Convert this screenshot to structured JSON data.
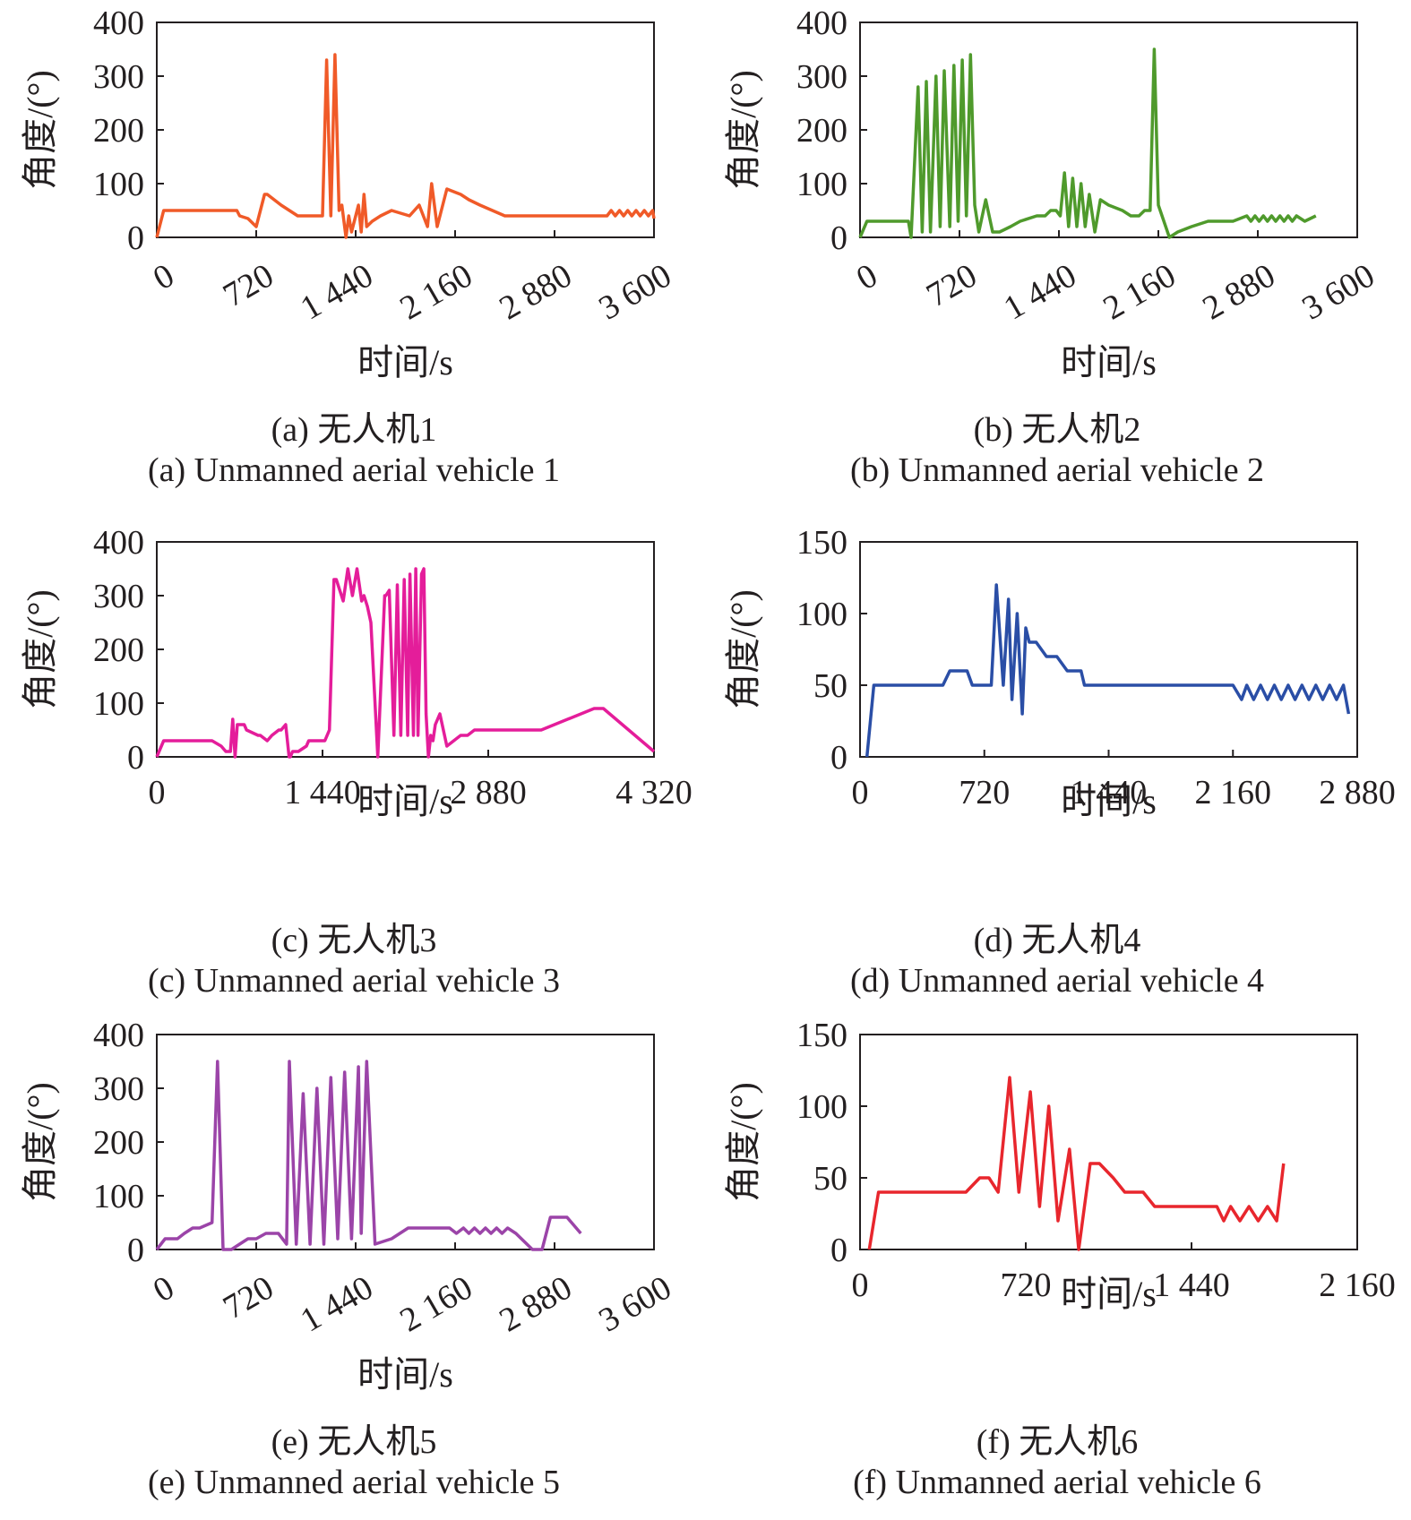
{
  "chart_data": [
    {
      "type": "line",
      "caption_cn": "(a) 无人机1",
      "caption_en": "(a) Unmanned aerial vehicle 1",
      "xlabel": "时间/s",
      "ylabel": "角度/(°)",
      "xlim": [
        0,
        3600
      ],
      "ylim": [
        0,
        400
      ],
      "xticks": [
        0,
        720,
        1440,
        2160,
        2880,
        3600
      ],
      "xtick_labels": [
        "0",
        "720",
        "1 440",
        "2 160",
        "2 880",
        "3 600"
      ],
      "yticks": [
        0,
        100,
        200,
        300,
        400
      ],
      "ytick_labels": [
        "0",
        "100",
        "200",
        "300",
        "400"
      ],
      "rotated_xticks": true,
      "grid": false,
      "color": "#f05a28",
      "series": [
        {
          "x": [
            0,
            50,
            500,
            520,
            580,
            600,
            660,
            700,
            720,
            780,
            800,
            900,
            1020,
            1200,
            1230,
            1260,
            1290,
            1320,
            1340,
            1370,
            1390,
            1410,
            1430,
            1460,
            1480,
            1500,
            1520,
            1560,
            1620,
            1700,
            1830,
            1900,
            1960,
            1990,
            2030,
            2100,
            2200,
            2260,
            2340,
            2520,
            2900,
            3260,
            3290,
            3320,
            3350,
            3380,
            3410,
            3440,
            3470,
            3500,
            3530,
            3560,
            3590,
            3600
          ],
          "y": [
            0,
            50,
            50,
            50,
            50,
            40,
            35,
            25,
            20,
            80,
            80,
            60,
            40,
            40,
            330,
            40,
            340,
            50,
            60,
            0,
            40,
            10,
            30,
            60,
            10,
            80,
            20,
            30,
            40,
            50,
            40,
            60,
            20,
            100,
            20,
            90,
            80,
            70,
            60,
            40,
            40,
            40,
            50,
            40,
            50,
            40,
            50,
            40,
            50,
            40,
            50,
            40,
            50,
            35
          ]
        }
      ]
    },
    {
      "type": "line",
      "caption_cn": "(b) 无人机2",
      "caption_en": "(b) Unmanned aerial vehicle 2",
      "xlabel": "时间/s",
      "ylabel": "角度/(°)",
      "xlim": [
        0,
        3600
      ],
      "ylim": [
        0,
        400
      ],
      "xticks": [
        0,
        720,
        1440,
        2160,
        2880,
        3600
      ],
      "xtick_labels": [
        "0",
        "720",
        "1 440",
        "2 160",
        "2 880",
        "3 600"
      ],
      "yticks": [
        0,
        100,
        200,
        300,
        400
      ],
      "ytick_labels": [
        "0",
        "100",
        "200",
        "300",
        "400"
      ],
      "rotated_xticks": true,
      "grid": false,
      "color": "#4f9a2c",
      "series": [
        {
          "x": [
            0,
            50,
            300,
            350,
            370,
            420,
            450,
            480,
            510,
            550,
            580,
            610,
            650,
            680,
            710,
            740,
            770,
            800,
            830,
            860,
            910,
            960,
            1010,
            1090,
            1160,
            1280,
            1310,
            1340,
            1380,
            1420,
            1450,
            1480,
            1510,
            1540,
            1570,
            1600,
            1630,
            1660,
            1700,
            1740,
            1800,
            1900,
            1960,
            2020,
            2060,
            2100,
            2130,
            2160,
            2240,
            2300,
            2400,
            2520,
            2700,
            2800,
            2830,
            2860,
            2890,
            2920,
            2950,
            2980,
            3010,
            3040,
            3070,
            3100,
            3130,
            3160,
            3220,
            3300
          ],
          "y": [
            0,
            30,
            30,
            30,
            0,
            280,
            10,
            290,
            10,
            300,
            20,
            310,
            20,
            320,
            30,
            330,
            40,
            340,
            60,
            10,
            70,
            10,
            10,
            20,
            30,
            40,
            40,
            40,
            50,
            50,
            40,
            120,
            20,
            110,
            20,
            100,
            20,
            80,
            10,
            70,
            60,
            50,
            40,
            40,
            50,
            50,
            350,
            60,
            0,
            10,
            20,
            30,
            30,
            40,
            30,
            40,
            30,
            40,
            30,
            40,
            30,
            40,
            30,
            40,
            30,
            40,
            30,
            40
          ]
        }
      ]
    },
    {
      "type": "line",
      "caption_cn": "(c) 无人机3",
      "caption_en": "(c) Unmanned aerial vehicle 3",
      "xlabel": "时间/s",
      "ylabel": "角度/(°)",
      "xlim": [
        0,
        4320
      ],
      "ylim": [
        0,
        400
      ],
      "xticks": [
        0,
        1440,
        2880,
        4320
      ],
      "xtick_labels": [
        "0",
        "1 440",
        "2 880",
        "4 320"
      ],
      "yticks": [
        0,
        100,
        200,
        300,
        400
      ],
      "ytick_labels": [
        "0",
        "100",
        "200",
        "300",
        "400"
      ],
      "rotated_xticks": false,
      "grid": false,
      "color": "#e41d9a",
      "series": [
        {
          "x": [
            0,
            60,
            450,
            480,
            560,
            600,
            640,
            660,
            680,
            700,
            760,
            780,
            880,
            900,
            960,
            1000,
            1060,
            1080,
            1120,
            1150,
            1160,
            1180,
            1230,
            1300,
            1320,
            1400,
            1460,
            1500,
            1540,
            1560,
            1620,
            1660,
            1700,
            1740,
            1780,
            1800,
            1830,
            1860,
            1920,
            1980,
            1990,
            2020,
            2060,
            2090,
            2120,
            2150,
            2180,
            2200,
            2230,
            2250,
            2270,
            2300,
            2320,
            2340,
            2360,
            2380,
            2400,
            2420,
            2460,
            2520,
            2580,
            2640,
            2700,
            2760,
            2900,
            3300,
            3340,
            3800,
            3880,
            4320
          ],
          "y": [
            0,
            30,
            30,
            30,
            20,
            10,
            10,
            70,
            0,
            60,
            60,
            50,
            40,
            40,
            30,
            40,
            50,
            50,
            60,
            0,
            0,
            10,
            10,
            20,
            30,
            30,
            30,
            50,
            330,
            330,
            290,
            350,
            300,
            350,
            290,
            300,
            280,
            250,
            0,
            300,
            300,
            310,
            40,
            320,
            40,
            330,
            40,
            340,
            40,
            350,
            40,
            340,
            350,
            80,
            0,
            40,
            30,
            60,
            80,
            20,
            30,
            40,
            40,
            50,
            50,
            50,
            50,
            90,
            90,
            10
          ]
        }
      ]
    },
    {
      "type": "line",
      "caption_cn": "(d) 无人机4",
      "caption_en": "(d) Unmanned aerial vehicle 4",
      "xlabel": "时间/s",
      "ylabel": "角度/(°)",
      "xlim": [
        0,
        2880
      ],
      "ylim": [
        0,
        150
      ],
      "xticks": [
        0,
        720,
        1440,
        2160,
        2880
      ],
      "xtick_labels": [
        "0",
        "720",
        "1 440",
        "2 160",
        "2 880"
      ],
      "yticks": [
        0,
        50,
        100,
        150
      ],
      "ytick_labels": [
        "0",
        "50",
        "100",
        "150"
      ],
      "rotated_xticks": false,
      "grid": false,
      "color": "#2a4ea6",
      "series": [
        {
          "x": [
            40,
            80,
            300,
            480,
            520,
            620,
            650,
            760,
            790,
            830,
            860,
            880,
            910,
            940,
            960,
            980,
            1020,
            1080,
            1140,
            1200,
            1280,
            1300,
            1360,
            1400,
            1440,
            1700,
            2160,
            2210,
            2240,
            2280,
            2320,
            2360,
            2400,
            2440,
            2480,
            2520,
            2560,
            2600,
            2640,
            2680,
            2720,
            2760,
            2800,
            2830
          ],
          "y": [
            0,
            50,
            50,
            50,
            60,
            60,
            50,
            50,
            120,
            50,
            110,
            40,
            100,
            30,
            90,
            80,
            80,
            70,
            70,
            60,
            60,
            50,
            50,
            50,
            50,
            50,
            50,
            40,
            50,
            40,
            50,
            40,
            50,
            40,
            50,
            40,
            50,
            40,
            50,
            40,
            50,
            40,
            50,
            30
          ]
        }
      ]
    },
    {
      "type": "line",
      "caption_cn": "(e) 无人机5",
      "caption_en": "(e) Unmanned aerial vehicle 5",
      "xlabel": "时间/s",
      "ylabel": "角度/(°)",
      "xlim": [
        0,
        3600
      ],
      "ylim": [
        0,
        400
      ],
      "xticks": [
        0,
        720,
        1440,
        2160,
        2880,
        3600
      ],
      "xtick_labels": [
        "0",
        "720",
        "1 440",
        "2 160",
        "2 880",
        "3 600"
      ],
      "yticks": [
        0,
        100,
        200,
        300,
        400
      ],
      "ytick_labels": [
        "0",
        "100",
        "200",
        "300",
        "400"
      ],
      "rotated_xticks": true,
      "grid": false,
      "color": "#9b44a8",
      "series": [
        {
          "x": [
            0,
            60,
            150,
            200,
            260,
            310,
            400,
            440,
            480,
            540,
            600,
            660,
            720,
            790,
            880,
            940,
            960,
            1010,
            1060,
            1110,
            1160,
            1210,
            1260,
            1310,
            1360,
            1410,
            1460,
            1480,
            1520,
            1580,
            1700,
            1820,
            2120,
            2170,
            2220,
            2260,
            2300,
            2340,
            2380,
            2420,
            2460,
            2500,
            2540,
            2600,
            2720,
            2790,
            2850,
            2970,
            3070
          ],
          "y": [
            0,
            20,
            20,
            30,
            40,
            40,
            50,
            350,
            0,
            0,
            10,
            20,
            20,
            30,
            30,
            10,
            350,
            10,
            290,
            10,
            300,
            10,
            320,
            20,
            330,
            20,
            340,
            30,
            350,
            10,
            20,
            40,
            40,
            30,
            40,
            30,
            40,
            30,
            40,
            30,
            40,
            30,
            40,
            30,
            0,
            0,
            60,
            60,
            30
          ]
        }
      ]
    },
    {
      "type": "line",
      "caption_cn": "(f) 无人机6",
      "caption_en": "(f) Unmanned aerial vehicle 6",
      "xlabel": "时间/s",
      "ylabel": "角度/(°)",
      "xlim": [
        0,
        2160
      ],
      "ylim": [
        0,
        150
      ],
      "xticks": [
        0,
        720,
        1440,
        2160
      ],
      "xtick_labels": [
        "0",
        "720",
        "1 440",
        "2 160"
      ],
      "yticks": [
        0,
        50,
        100,
        150
      ],
      "ytick_labels": [
        "0",
        "50",
        "100",
        "150"
      ],
      "rotated_xticks": false,
      "grid": false,
      "color": "#e8262d",
      "series": [
        {
          "x": [
            40,
            80,
            400,
            460,
            520,
            560,
            600,
            650,
            690,
            740,
            780,
            820,
            860,
            910,
            950,
            1000,
            1040,
            1100,
            1150,
            1200,
            1230,
            1280,
            1360,
            1550,
            1580,
            1610,
            1650,
            1690,
            1730,
            1770,
            1810,
            1840
          ],
          "y": [
            0,
            40,
            40,
            40,
            50,
            50,
            40,
            120,
            40,
            110,
            30,
            100,
            20,
            70,
            0,
            60,
            60,
            50,
            40,
            40,
            40,
            30,
            30,
            30,
            20,
            30,
            20,
            30,
            20,
            30,
            20,
            60
          ]
        }
      ]
    }
  ]
}
